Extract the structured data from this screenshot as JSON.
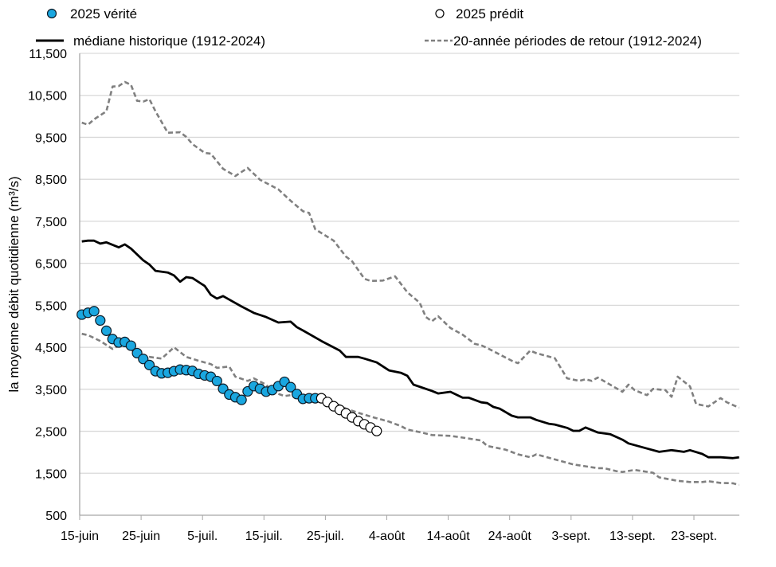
{
  "chart_data": {
    "type": "line",
    "title": "",
    "xlabel": "",
    "ylabel": "la moyenne débit quotidienne (m³/s)",
    "ylim": [
      500,
      11500
    ],
    "yticks": [
      "500",
      "1,500",
      "2,500",
      "3,500",
      "4,500",
      "5,500",
      "6,500",
      "7,500",
      "8,500",
      "9,500",
      "10,500",
      "11,500"
    ],
    "ytick_values": [
      500,
      1500,
      2500,
      3500,
      4500,
      5500,
      6500,
      7500,
      8500,
      9500,
      10500,
      11500
    ],
    "xlim": [
      "06-15",
      "09-30"
    ],
    "xticks": [
      "15-juin",
      "25-juin",
      "5-juil.",
      "15-juil.",
      "25-juil.",
      "4-août",
      "14-août",
      "24-août",
      "3-sept.",
      "13-sept.",
      "23-sept."
    ],
    "xtick_dates": [
      "06-15",
      "06-25",
      "07-05",
      "07-15",
      "07-25",
      "08-04",
      "08-14",
      "08-24",
      "09-03",
      "09-13",
      "09-23"
    ],
    "grid": "horizontal",
    "legend_position": "top",
    "colors": {
      "observed": "#1aa7e0",
      "marker_edge": "#0d1a26",
      "median": "#000000",
      "return": "#808080",
      "grid": "#d9d9d9",
      "axis": "#a6a6a6"
    },
    "series": [
      {
        "name": "2025 vérité",
        "style": "markers-filled",
        "points": [
          [
            "06-15",
            5278
          ],
          [
            "06-16",
            5322
          ],
          [
            "06-17",
            5360
          ],
          [
            "06-18",
            5139
          ],
          [
            "06-19",
            4893
          ],
          [
            "06-20",
            4696
          ],
          [
            "06-21",
            4614
          ],
          [
            "06-22",
            4627
          ],
          [
            "06-23",
            4538
          ],
          [
            "06-24",
            4361
          ],
          [
            "06-25",
            4222
          ],
          [
            "06-26",
            4077
          ],
          [
            "06-27",
            3931
          ],
          [
            "06-28",
            3880
          ],
          [
            "06-29",
            3893
          ],
          [
            "06-30",
            3931
          ],
          [
            "07-01",
            3968
          ],
          [
            "07-02",
            3956
          ],
          [
            "07-03",
            3937
          ],
          [
            "07-04",
            3868
          ],
          [
            "07-05",
            3830
          ],
          [
            "07-06",
            3798
          ],
          [
            "07-07",
            3697
          ],
          [
            "07-08",
            3513
          ],
          [
            "07-09",
            3375
          ],
          [
            "07-10",
            3311
          ],
          [
            "07-11",
            3248
          ],
          [
            "07-12",
            3450
          ],
          [
            "07-13",
            3576
          ],
          [
            "07-14",
            3513
          ],
          [
            "07-15",
            3443
          ],
          [
            "07-16",
            3481
          ],
          [
            "07-17",
            3576
          ],
          [
            "07-18",
            3678
          ],
          [
            "07-19",
            3551
          ],
          [
            "07-20",
            3386
          ],
          [
            "07-21",
            3272
          ],
          [
            "07-22",
            3286
          ],
          [
            "07-23",
            3286
          ]
        ]
      },
      {
        "name": "2025 prédit",
        "style": "markers-open",
        "points": [
          [
            "07-24",
            3286
          ],
          [
            "07-25",
            3197
          ],
          [
            "07-26",
            3096
          ],
          [
            "07-27",
            3008
          ],
          [
            "07-28",
            2926
          ],
          [
            "07-29",
            2831
          ],
          [
            "07-30",
            2742
          ],
          [
            "07-31",
            2666
          ],
          [
            "08-01",
            2590
          ],
          [
            "08-02",
            2507
          ]
        ]
      },
      {
        "name": "médiane historique (1912-2024)",
        "style": "solid",
        "points": [
          [
            "06-15",
            7020
          ],
          [
            "06-16",
            7040
          ],
          [
            "06-17",
            7040
          ],
          [
            "06-18",
            6970
          ],
          [
            "06-19",
            7000
          ],
          [
            "06-21",
            6880
          ],
          [
            "06-22",
            6950
          ],
          [
            "06-23",
            6850
          ],
          [
            "06-25",
            6570
          ],
          [
            "06-26",
            6470
          ],
          [
            "06-27",
            6320
          ],
          [
            "06-29",
            6280
          ],
          [
            "06-30",
            6210
          ],
          [
            "07-01",
            6060
          ],
          [
            "07-02",
            6170
          ],
          [
            "07-03",
            6150
          ],
          [
            "07-05",
            5960
          ],
          [
            "07-06",
            5750
          ],
          [
            "07-07",
            5660
          ],
          [
            "07-08",
            5720
          ],
          [
            "07-11",
            5470
          ],
          [
            "07-13",
            5320
          ],
          [
            "07-15",
            5220
          ],
          [
            "07-17",
            5090
          ],
          [
            "07-19",
            5110
          ],
          [
            "07-20",
            4980
          ],
          [
            "07-21",
            4900
          ],
          [
            "07-24",
            4650
          ],
          [
            "07-27",
            4420
          ],
          [
            "07-28",
            4270
          ],
          [
            "07-30",
            4270
          ],
          [
            "07-31",
            4230
          ],
          [
            "08-02",
            4140
          ],
          [
            "08-04",
            3950
          ],
          [
            "08-06",
            3890
          ],
          [
            "08-07",
            3820
          ],
          [
            "08-08",
            3610
          ],
          [
            "08-11",
            3460
          ],
          [
            "08-12",
            3400
          ],
          [
            "08-14",
            3440
          ],
          [
            "08-16",
            3300
          ],
          [
            "08-17",
            3300
          ],
          [
            "08-19",
            3190
          ],
          [
            "08-20",
            3170
          ],
          [
            "08-21",
            3080
          ],
          [
            "08-22",
            3040
          ],
          [
            "08-24",
            2870
          ],
          [
            "08-25",
            2830
          ],
          [
            "08-27",
            2830
          ],
          [
            "08-28",
            2770
          ],
          [
            "08-30",
            2680
          ],
          [
            "08-31",
            2660
          ],
          [
            "09-02",
            2580
          ],
          [
            "09-03",
            2510
          ],
          [
            "09-04",
            2510
          ],
          [
            "09-05",
            2590
          ],
          [
            "09-07",
            2470
          ],
          [
            "09-09",
            2430
          ],
          [
            "09-11",
            2300
          ],
          [
            "09-12",
            2210
          ],
          [
            "09-15",
            2090
          ],
          [
            "09-17",
            2010
          ],
          [
            "09-19",
            2050
          ],
          [
            "09-20",
            2030
          ],
          [
            "09-21",
            2010
          ],
          [
            "09-22",
            2050
          ],
          [
            "09-24",
            1960
          ],
          [
            "09-25",
            1880
          ],
          [
            "09-27",
            1880
          ],
          [
            "09-29",
            1860
          ],
          [
            "09-30",
            1880
          ]
        ]
      },
      {
        "name": "20-année périodes de retour (1912-2024)",
        "style": "dashed",
        "part": "upper",
        "points": [
          [
            "06-15",
            9850
          ],
          [
            "06-16",
            9800
          ],
          [
            "06-17",
            9930
          ],
          [
            "06-19",
            10120
          ],
          [
            "06-20",
            10710
          ],
          [
            "06-21",
            10720
          ],
          [
            "06-22",
            10820
          ],
          [
            "06-23",
            10750
          ],
          [
            "06-24",
            10370
          ],
          [
            "06-25",
            10350
          ],
          [
            "06-26",
            10410
          ],
          [
            "06-27",
            10120
          ],
          [
            "06-29",
            9610
          ],
          [
            "07-01",
            9620
          ],
          [
            "07-02",
            9510
          ],
          [
            "07-03",
            9340
          ],
          [
            "07-05",
            9130
          ],
          [
            "07-06",
            9110
          ],
          [
            "07-08",
            8750
          ],
          [
            "07-10",
            8580
          ],
          [
            "07-12",
            8770
          ],
          [
            "07-14",
            8490
          ],
          [
            "07-17",
            8260
          ],
          [
            "07-19",
            7990
          ],
          [
            "07-21",
            7740
          ],
          [
            "07-22",
            7700
          ],
          [
            "07-23",
            7310
          ],
          [
            "07-26",
            7040
          ],
          [
            "07-28",
            6660
          ],
          [
            "07-29",
            6550
          ],
          [
            "07-31",
            6130
          ],
          [
            "08-01",
            6080
          ],
          [
            "08-03",
            6090
          ],
          [
            "08-05",
            6190
          ],
          [
            "08-07",
            5810
          ],
          [
            "08-09",
            5560
          ],
          [
            "08-10",
            5220
          ],
          [
            "08-11",
            5120
          ],
          [
            "08-12",
            5240
          ],
          [
            "08-14",
            4960
          ],
          [
            "08-16",
            4800
          ],
          [
            "08-18",
            4580
          ],
          [
            "08-19",
            4550
          ],
          [
            "08-20",
            4480
          ],
          [
            "08-24",
            4180
          ],
          [
            "08-25",
            4120
          ],
          [
            "08-27",
            4420
          ],
          [
            "08-28",
            4360
          ],
          [
            "08-31",
            4240
          ],
          [
            "09-02",
            3760
          ],
          [
            "09-04",
            3700
          ],
          [
            "09-05",
            3740
          ],
          [
            "09-06",
            3700
          ],
          [
            "09-07",
            3780
          ],
          [
            "09-09",
            3610
          ],
          [
            "09-11",
            3440
          ],
          [
            "09-12",
            3610
          ],
          [
            "09-13",
            3480
          ],
          [
            "09-15",
            3360
          ],
          [
            "09-16",
            3510
          ],
          [
            "09-18",
            3480
          ],
          [
            "09-19",
            3320
          ],
          [
            "09-20",
            3800
          ],
          [
            "09-22",
            3570
          ],
          [
            "09-23",
            3150
          ],
          [
            "09-25",
            3090
          ],
          [
            "09-27",
            3290
          ],
          [
            "09-28",
            3190
          ],
          [
            "09-30",
            3060
          ]
        ]
      },
      {
        "name": "20-année périodes de retour (1912-2024)",
        "style": "dashed",
        "part": "lower",
        "points": [
          [
            "06-15",
            4820
          ],
          [
            "06-16",
            4790
          ],
          [
            "06-18",
            4650
          ],
          [
            "06-20",
            4460
          ],
          [
            "06-21",
            4540
          ],
          [
            "06-22",
            4540
          ],
          [
            "06-24",
            4350
          ],
          [
            "06-25",
            4250
          ],
          [
            "06-26",
            4270
          ],
          [
            "06-28",
            4230
          ],
          [
            "06-30",
            4500
          ],
          [
            "07-02",
            4270
          ],
          [
            "07-04",
            4180
          ],
          [
            "07-06",
            4100
          ],
          [
            "07-07",
            4010
          ],
          [
            "07-09",
            4040
          ],
          [
            "07-10",
            3800
          ],
          [
            "07-12",
            3700
          ],
          [
            "07-13",
            3760
          ],
          [
            "07-15",
            3610
          ],
          [
            "07-16",
            3440
          ],
          [
            "07-18",
            3340
          ],
          [
            "07-19",
            3360
          ],
          [
            "07-21",
            3330
          ],
          [
            "07-22",
            3330
          ],
          [
            "07-25",
            3230
          ],
          [
            "07-27",
            3120
          ],
          [
            "07-28",
            3040
          ],
          [
            "07-30",
            2940
          ],
          [
            "08-01",
            2850
          ],
          [
            "08-03",
            2770
          ],
          [
            "08-04",
            2730
          ],
          [
            "08-06",
            2620
          ],
          [
            "08-07",
            2540
          ],
          [
            "08-09",
            2480
          ],
          [
            "08-11",
            2410
          ],
          [
            "08-14",
            2390
          ],
          [
            "08-16",
            2350
          ],
          [
            "08-19",
            2280
          ],
          [
            "08-20",
            2150
          ],
          [
            "08-23",
            2060
          ],
          [
            "08-25",
            1950
          ],
          [
            "08-27",
            1880
          ],
          [
            "08-28",
            1950
          ],
          [
            "08-31",
            1830
          ],
          [
            "09-03",
            1710
          ],
          [
            "09-07",
            1620
          ],
          [
            "09-08",
            1620
          ],
          [
            "09-10",
            1550
          ],
          [
            "09-11",
            1530
          ],
          [
            "09-13",
            1580
          ],
          [
            "09-16",
            1510
          ],
          [
            "09-17",
            1400
          ],
          [
            "09-20",
            1320
          ],
          [
            "09-22",
            1290
          ],
          [
            "09-24",
            1290
          ],
          [
            "09-25",
            1310
          ],
          [
            "09-27",
            1270
          ],
          [
            "09-29",
            1260
          ],
          [
            "09-30",
            1220
          ]
        ]
      }
    ],
    "legend": [
      {
        "label": "2025 vérité",
        "marker": "filled-circle"
      },
      {
        "label": "2025 prédit",
        "marker": "open-circle"
      },
      {
        "label": "médiane historique (1912-2024)",
        "marker": "solid-line"
      },
      {
        "label": "20-année périodes de retour (1912-2024)",
        "marker": "dashed-line"
      }
    ]
  }
}
